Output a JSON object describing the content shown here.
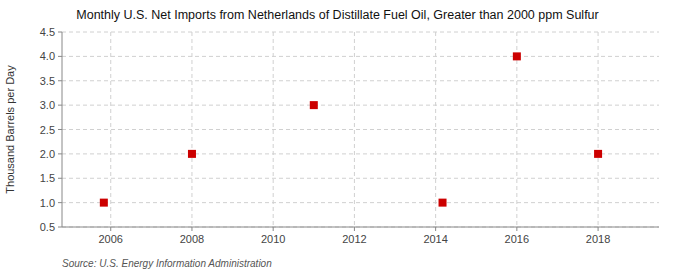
{
  "chart_data": {
    "type": "scatter",
    "title": "Monthly U.S. Net Imports from Netherlands of Distillate Fuel Oil, Greater than 2000 ppm Sulfur",
    "ylabel": "Thousand Barrels per Day",
    "source": "Source: U.S. Energy Information Administration",
    "x": [
      2005.83,
      2008.0,
      2011.0,
      2014.17,
      2016.0,
      2018.0
    ],
    "values": [
      1.0,
      2.0,
      3.0,
      1.0,
      4.0,
      2.0
    ],
    "color": "#cc0000",
    "marker": "square",
    "xlim": [
      2004.8,
      2019.5
    ],
    "ylim": [
      0.5,
      4.5
    ],
    "xticks": [
      2006,
      2008,
      2010,
      2012,
      2014,
      2016,
      2018
    ],
    "yticks": [
      0.5,
      {
        "value": 1,
        "label": "1.0"
      },
      1.5,
      {
        "value": 2,
        "label": "2.0"
      },
      2.5,
      {
        "value": 3,
        "label": "3.0"
      },
      3.5,
      {
        "value": 4,
        "label": "4.0"
      },
      4.5
    ],
    "grid": true
  }
}
